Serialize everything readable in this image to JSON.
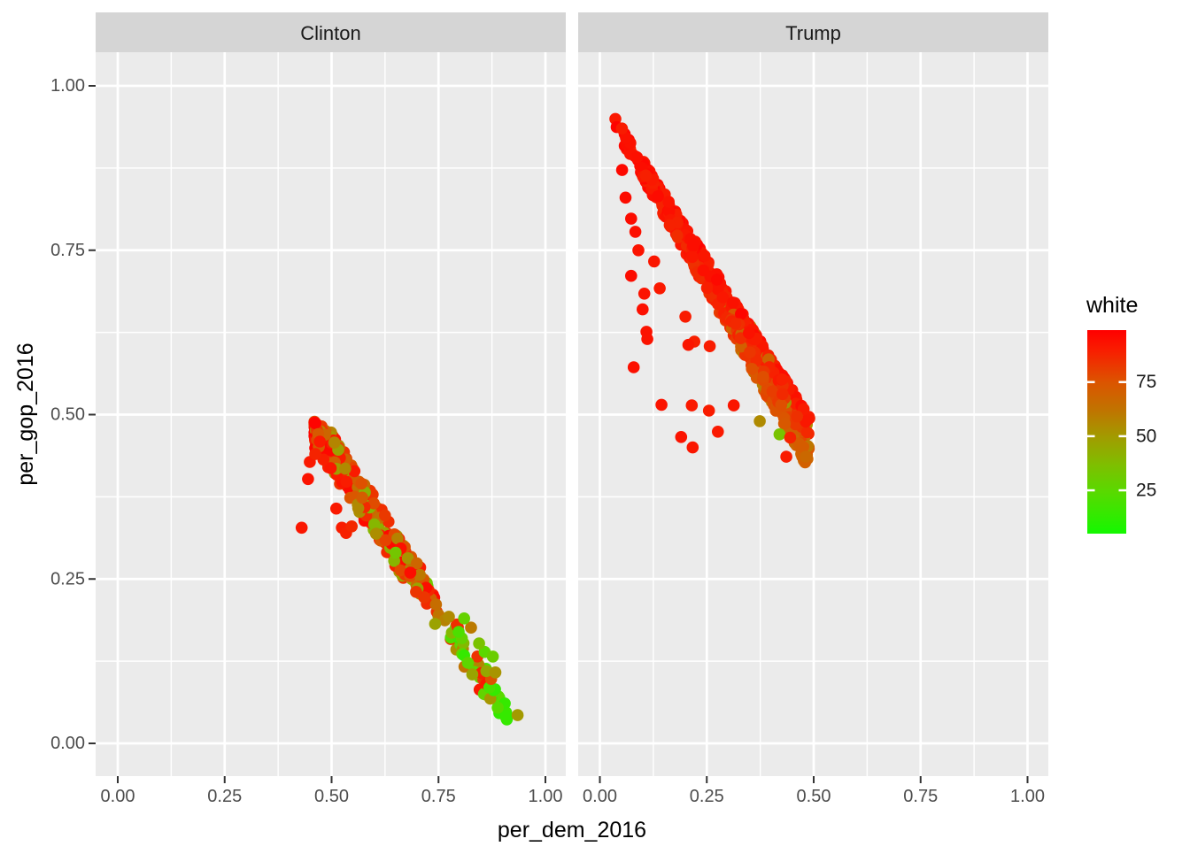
{
  "chart_data": {
    "type": "scatter",
    "facet_variable_values": [
      "Clinton",
      "Trump"
    ],
    "xlabel": "per_dem_2016",
    "ylabel": "per_gop_2016",
    "x_axis": {
      "tick_labels": [
        "0.00",
        "0.25",
        "0.50",
        "0.75",
        "1.00"
      ],
      "tick_values": [
        0,
        0.25,
        0.5,
        0.75,
        1
      ],
      "minor_ticks": [
        0.125,
        0.375,
        0.625,
        0.875
      ],
      "range": [
        -0.05,
        1.05
      ]
    },
    "y_axis": {
      "tick_labels": [
        "0.00",
        "0.25",
        "0.50",
        "0.75",
        "1.00"
      ],
      "tick_values": [
        0,
        0.25,
        0.5,
        0.75,
        1
      ],
      "minor_ticks": [
        0.125,
        0.375,
        0.625,
        0.875
      ],
      "range": [
        -0.05,
        1.05
      ]
    },
    "legend": {
      "title": "white",
      "tick_labels": [
        "75",
        "50",
        "25"
      ],
      "tick_values": [
        75,
        50,
        25
      ],
      "domain": [
        5,
        99
      ],
      "gradient_stops": [
        [
          99,
          "#FF0000"
        ],
        [
          90,
          "#F91C00"
        ],
        [
          75,
          "#DC5400"
        ],
        [
          62,
          "#C07400"
        ],
        [
          50,
          "#A39A00"
        ],
        [
          37,
          "#7FBE00"
        ],
        [
          25,
          "#5BD800"
        ],
        [
          12,
          "#2EEC00"
        ],
        [
          5,
          "#13F800"
        ]
      ]
    },
    "point_radius": 6.8,
    "series": {
      "Clinton": {
        "band": {
          "count": 300,
          "seed": 11,
          "x_start": 0.46,
          "x_end": 0.91,
          "density_exp": 1.8,
          "sum_line": 0.98,
          "d_min": 0.005,
          "d_max_start": 0.07,
          "d_max_end": 0.05,
          "head_round": 0.025,
          "head_round_u": 0.1,
          "white_base_start": 80,
          "white_base_end": 25,
          "white_noise": 26,
          "red_fraction": 0.3,
          "red_min": 82,
          "red_span": 15
        },
        "outliers": [
          [
            0.43,
            0.328,
            92
          ],
          [
            0.445,
            0.402,
            93
          ],
          [
            0.449,
            0.428,
            91
          ],
          [
            0.462,
            0.44,
            88
          ],
          [
            0.524,
            0.328,
            90
          ],
          [
            0.534,
            0.32,
            89
          ],
          [
            0.511,
            0.357,
            91
          ],
          [
            0.547,
            0.33,
            87
          ],
          [
            0.935,
            0.043,
            50
          ],
          [
            0.869,
            0.085,
            20
          ],
          [
            0.873,
            0.098,
            75
          ],
          [
            0.858,
            0.139,
            25
          ],
          [
            0.877,
            0.132,
            30
          ],
          [
            0.862,
            0.11,
            45
          ],
          [
            0.883,
            0.108,
            52
          ],
          [
            0.845,
            0.152,
            35
          ],
          [
            0.826,
            0.176,
            60
          ],
          [
            0.81,
            0.19,
            28
          ]
        ]
      },
      "Trump": {
        "band": {
          "count": 570,
          "seed": 23,
          "x_start": 0.03,
          "x_end": 0.49,
          "density_exp": 0.62,
          "sum_line": 0.99,
          "d_min": 0.003,
          "d_max_start": 0.02,
          "d_max_end": 0.085,
          "head_round": 0,
          "head_round_u": 0,
          "white_base": 90,
          "white_noise": 9,
          "edge_darken": 350,
          "olive_chance": 0.08,
          "olive_min": 52,
          "olive_span": 22
        },
        "outliers": [
          [
            0.052,
            0.872,
            96
          ],
          [
            0.06,
            0.83,
            95
          ],
          [
            0.073,
            0.798,
            95
          ],
          [
            0.083,
            0.778,
            94
          ],
          [
            0.09,
            0.75,
            93
          ],
          [
            0.127,
            0.733,
            92
          ],
          [
            0.073,
            0.711,
            95
          ],
          [
            0.104,
            0.684,
            93
          ],
          [
            0.1,
            0.66,
            94
          ],
          [
            0.14,
            0.692,
            91
          ],
          [
            0.109,
            0.626,
            93
          ],
          [
            0.2,
            0.649,
            90
          ],
          [
            0.221,
            0.611,
            89
          ],
          [
            0.111,
            0.615,
            93
          ],
          [
            0.207,
            0.606,
            92
          ],
          [
            0.257,
            0.604,
            90
          ],
          [
            0.079,
            0.572,
            94
          ],
          [
            0.144,
            0.515,
            93
          ],
          [
            0.215,
            0.514,
            91
          ],
          [
            0.255,
            0.506,
            90
          ],
          [
            0.313,
            0.514,
            92
          ],
          [
            0.276,
            0.474,
            91
          ],
          [
            0.19,
            0.466,
            93
          ],
          [
            0.217,
            0.45,
            92
          ],
          [
            0.436,
            0.436,
            90
          ],
          [
            0.374,
            0.49,
            55
          ],
          [
            0.42,
            0.47,
            35
          ],
          [
            0.445,
            0.465,
            88
          ]
        ]
      }
    },
    "colors": {
      "panel_bg": "#EBEBEB",
      "strip_bg": "#D5D5D5",
      "grid": "#FFFFFF",
      "tick": "#333333",
      "tick_label": "#4D4D4D",
      "axis_title": "#000000",
      "background": "#FFFFFF"
    }
  }
}
